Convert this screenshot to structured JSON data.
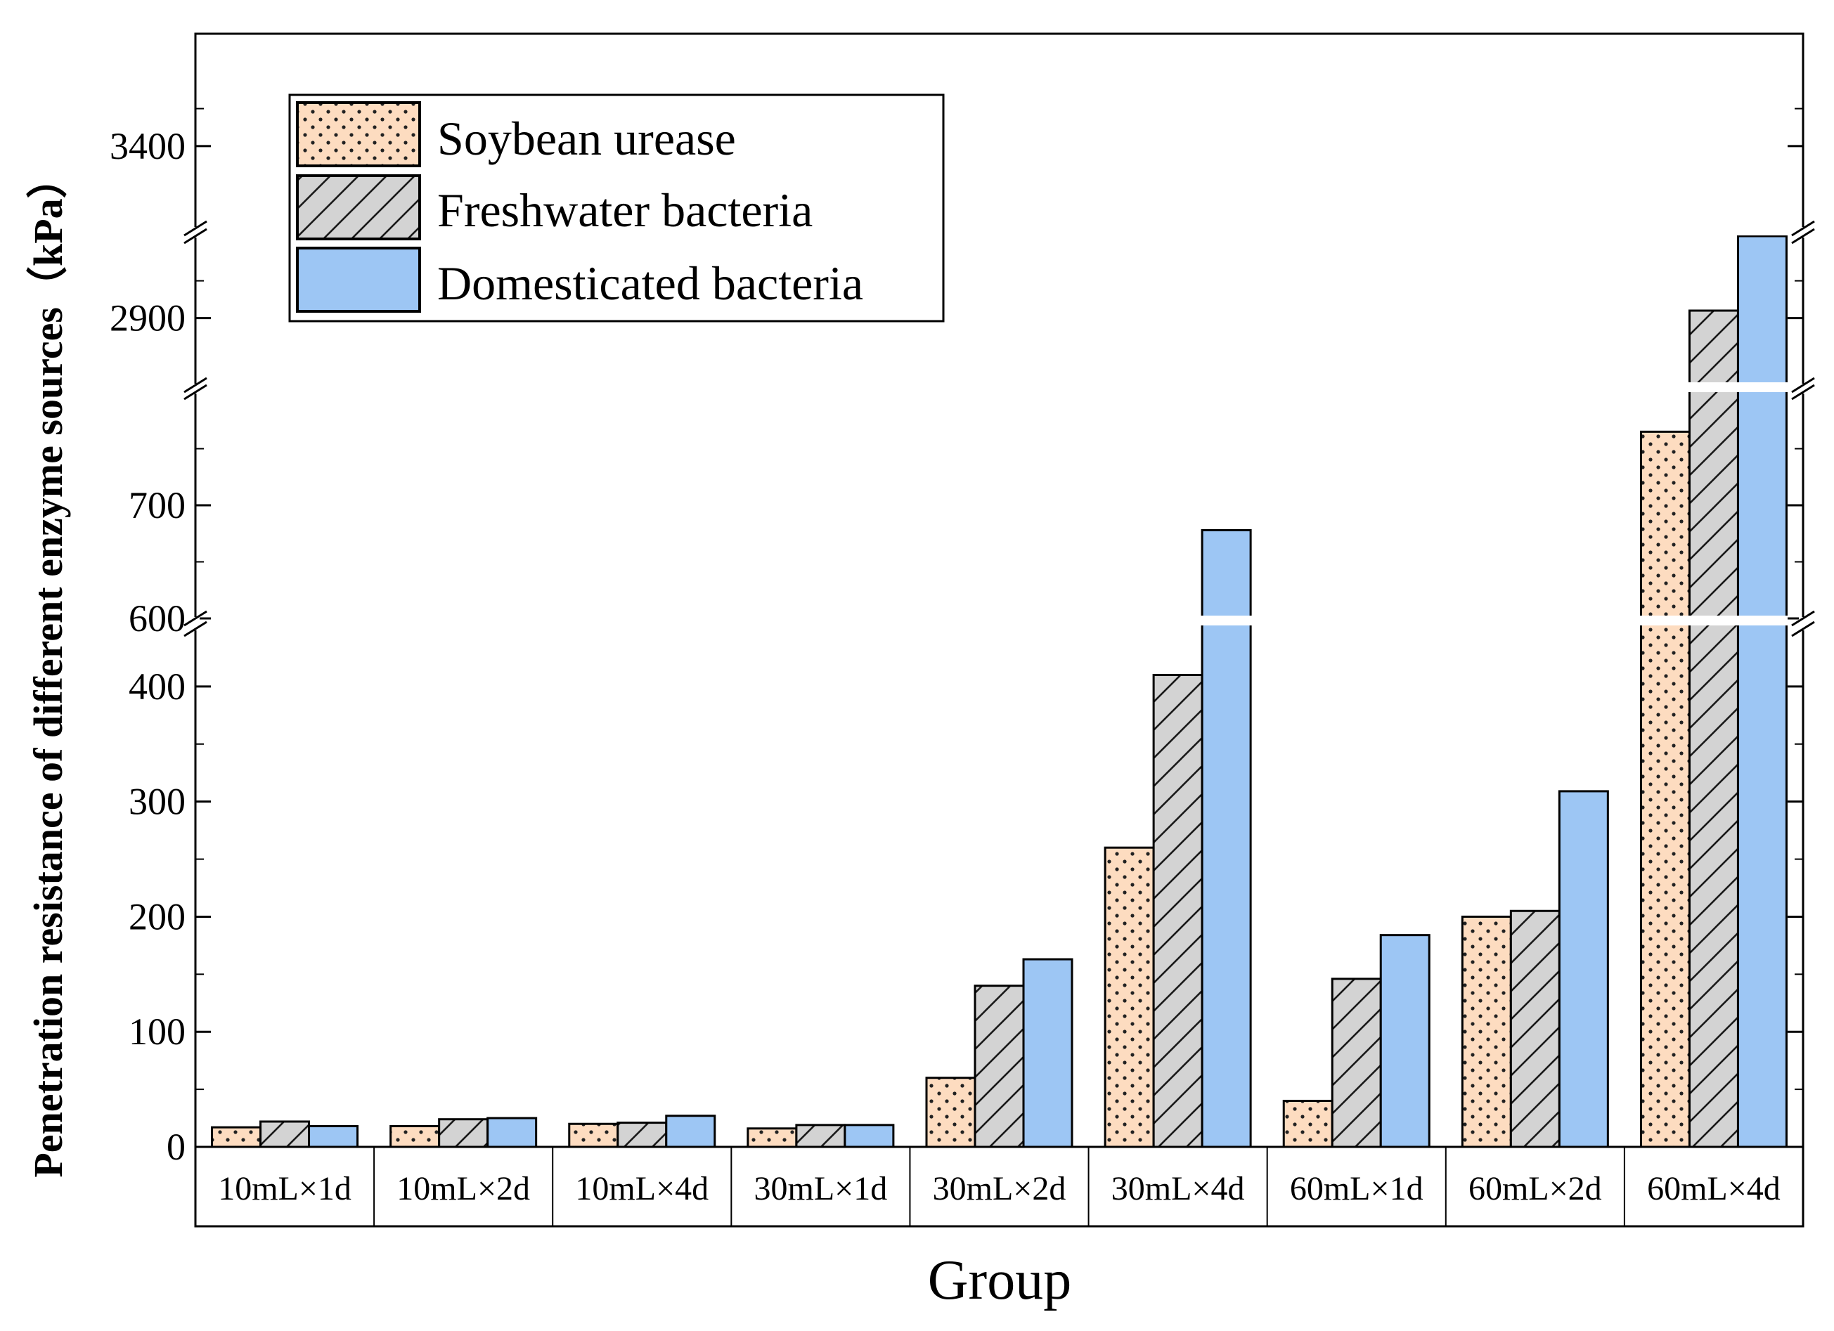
{
  "chart_data": {
    "type": "bar",
    "xlabel": "Group",
    "ylabel": "Penetration resistance of different enzyme sources（kPa）",
    "categories": [
      "10mL×1d",
      "10mL×2d",
      "10mL×4d",
      "30mL×1d",
      "30mL×2d",
      "30mL×4d",
      "60mL×1d",
      "60mL×2d",
      "60mL×4d"
    ],
    "series": [
      {
        "name": "Soybean urease",
        "color": "#fddcc0",
        "pattern": "dots",
        "values": [
          17,
          18,
          20,
          16,
          60,
          260,
          40,
          200,
          765
        ]
      },
      {
        "name": "Freshwater bacteria",
        "color": "#d3d3d3",
        "pattern": "hatch",
        "values": [
          22,
          24,
          21,
          19,
          140,
          410,
          146,
          205,
          2910
        ]
      },
      {
        "name": "Domesticated bacteria",
        "color": "#9dc6f4",
        "pattern": "solid",
        "values": [
          18,
          25,
          27,
          19,
          163,
          678,
          184,
          309,
          3255
        ]
      }
    ],
    "y_axis_breaks": [
      [
        450,
        600
      ],
      [
        800,
        2810
      ],
      [
        3010,
        3290
      ]
    ],
    "y_segments": [
      {
        "range": [
          0,
          450
        ],
        "ticks": [
          0,
          100,
          200,
          300,
          400
        ]
      },
      {
        "range": [
          600,
          800
        ],
        "ticks": [
          600,
          700
        ]
      },
      {
        "range": [
          2810,
          3010
        ],
        "ticks": [
          2900
        ]
      },
      {
        "range": [
          3290,
          3520
        ],
        "ticks": [
          3400
        ]
      }
    ],
    "legend_position": "top-left",
    "grid": false
  }
}
